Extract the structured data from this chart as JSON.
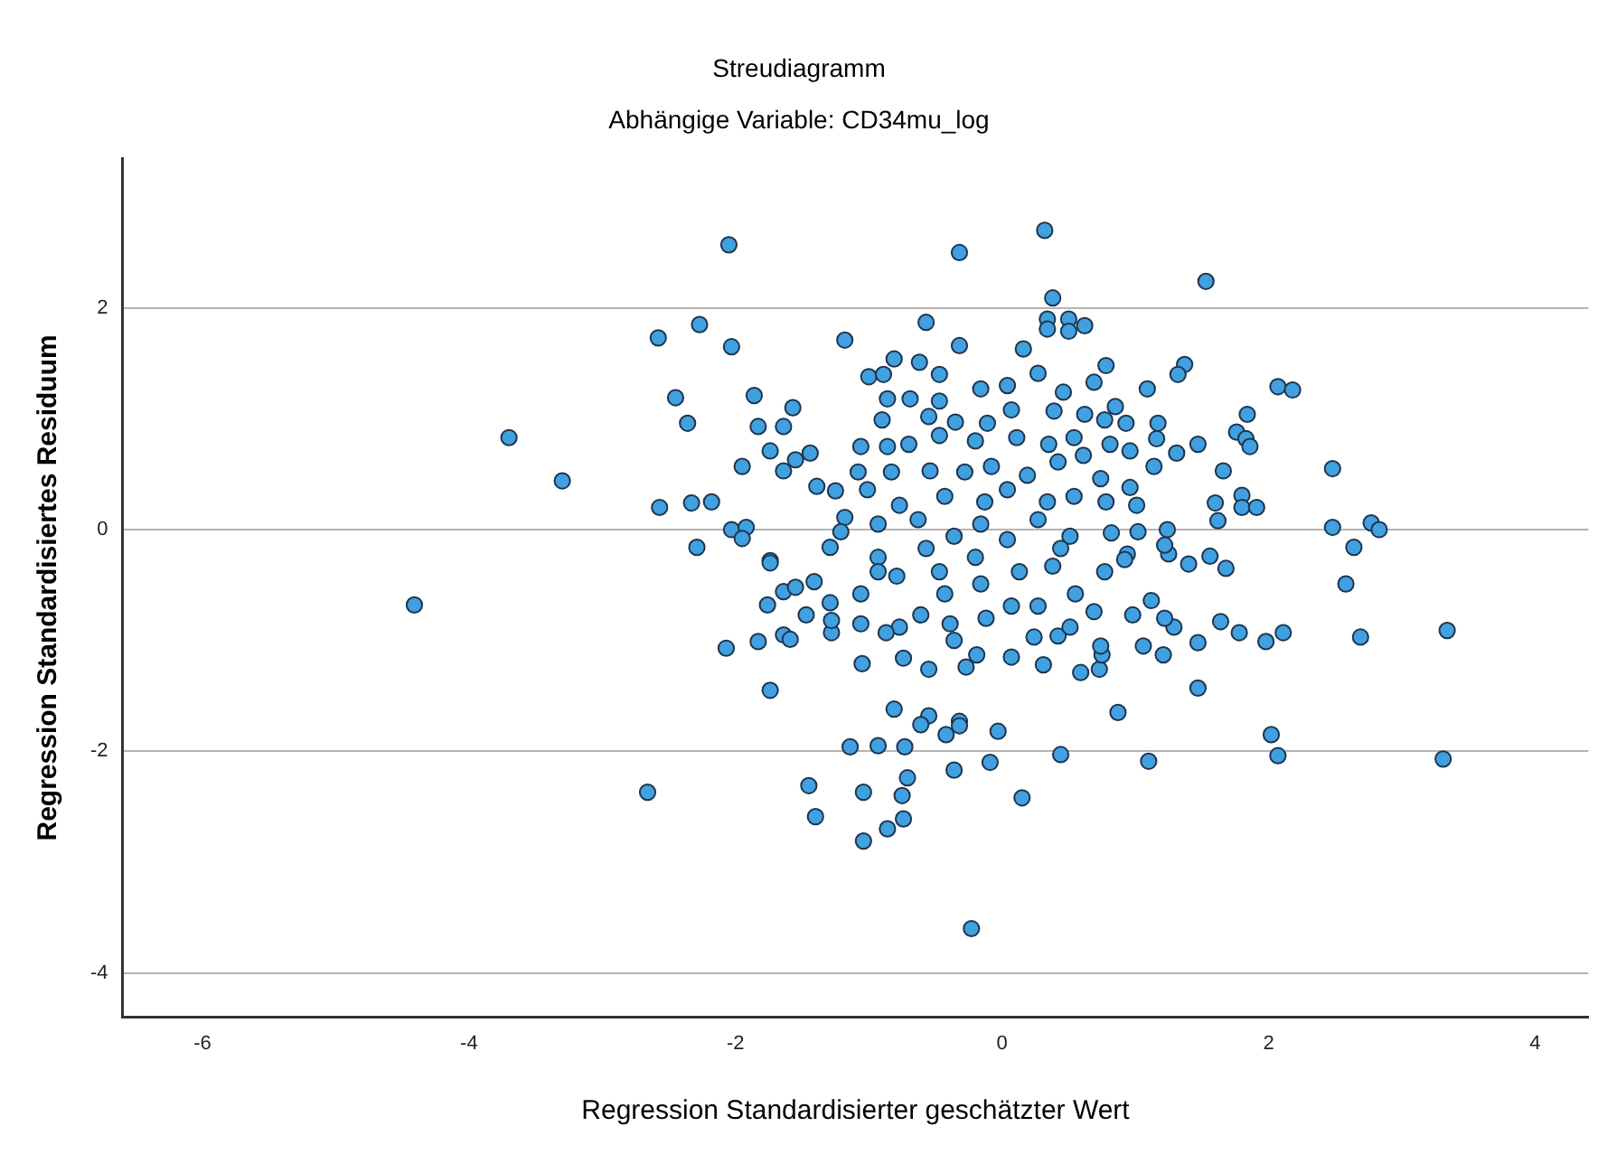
{
  "chart_data": {
    "type": "scatter",
    "title": "Streudiagramm",
    "subtitle": "Abhängige Variable: CD34mu_log",
    "xlabel": "Regression Standardisierter geschätzter Wert",
    "ylabel": "Regression Standardisiertes Residuum",
    "xlim": [
      -6.6,
      4.4
    ],
    "ylim": [
      -4.4,
      3.35
    ],
    "xticks": [
      -6,
      -4,
      -2,
      0,
      2,
      4
    ],
    "yticks": [
      -4,
      -2,
      0,
      2
    ],
    "grid": "y",
    "marker": "circle",
    "legend": false,
    "series": [
      {
        "color": "#41a0e0",
        "x": [
          -2.05,
          -2.58,
          -2.27,
          -2.03,
          -1.18,
          -2.45,
          -2.36,
          -3.7,
          -3.3,
          -2.57,
          -2.33,
          -2.18,
          -1.86,
          -1.57,
          -1.83,
          -1.64,
          -1.95,
          -1.74,
          -1.55,
          -1.44,
          -1.64,
          -1.39,
          -1.25,
          -2.03,
          -1.92,
          -1.95,
          -2.29,
          -1.74,
          -1.29,
          -1.18,
          -4.41,
          -2.66,
          -1.45,
          -1.4,
          -1.04,
          -1.14,
          -1.04,
          -1.74,
          -2.07,
          -1.83,
          -1.64,
          -1.59,
          -1.76,
          -1.64,
          -1.55,
          -1.47,
          -1.41,
          -1.29,
          -1.28,
          -1.74,
          -1.06,
          -1.05,
          0.32,
          -0.32,
          1.53,
          0.38,
          -0.57,
          0.34,
          0.5,
          0.5,
          0.62,
          0.34,
          -0.32,
          -0.81,
          -1.0,
          -0.89,
          -0.62,
          -0.47,
          0.16,
          0.78,
          1.09,
          1.37,
          1.32,
          2.07,
          2.18,
          1.84,
          1.76,
          1.83,
          1.86,
          2.48,
          1.66,
          1.6,
          1.62,
          1.8,
          1.8,
          1.91,
          2.48,
          2.77,
          2.83,
          2.64,
          2.58,
          1.56,
          1.68,
          1.4,
          1.31,
          1.47,
          1.17,
          1.16,
          0.93,
          0.96,
          1.14,
          0.96,
          1.24,
          1.25,
          0.77,
          3.34,
          3.31,
          2.69,
          2.11,
          1.98,
          1.78,
          1.64,
          1.47,
          1.47,
          2.02,
          2.07,
          1.1,
          0.87,
          0.44,
          0.15,
          -0.23,
          -0.03,
          -0.09,
          -0.36,
          -0.42,
          -0.32,
          -0.32,
          -0.55,
          -0.61,
          -0.81,
          -0.73,
          -0.93,
          -0.71,
          -0.75,
          -0.74,
          -0.86,
          0.59,
          0.73,
          0.75,
          1.21,
          1.06,
          1.29,
          -0.27,
          -0.55,
          -0.74,
          0.07,
          0.31,
          -0.86,
          -0.69,
          -0.47,
          -0.16,
          0.04,
          0.27,
          0.46,
          0.69,
          0.85,
          -0.9,
          -0.55,
          -0.35,
          -0.11,
          0.07,
          0.39,
          0.62,
          0.77,
          -1.06,
          -0.86,
          -0.7,
          -0.47,
          -0.2,
          0.11,
          0.35,
          0.54,
          0.81,
          -1.08,
          -0.83,
          -0.54,
          -0.28,
          -0.08,
          0.19,
          0.42,
          0.61,
          0.74,
          -1.01,
          -0.77,
          -0.43,
          -0.13,
          0.04,
          0.34,
          0.54,
          0.78,
          1.01,
          -1.21,
          -0.93,
          -0.63,
          -0.36,
          -0.16,
          0.04,
          0.27,
          0.51,
          0.82,
          1.02,
          -0.93,
          -0.57,
          -0.2,
          0.13,
          0.44,
          0.94,
          -1.28,
          -0.93,
          -0.79,
          -0.77,
          -0.61,
          -0.47,
          -0.39,
          -0.36,
          -0.19,
          -0.12,
          -0.16,
          0.07,
          0.24,
          0.27,
          0.38,
          0.42,
          0.51,
          0.55,
          0.69,
          0.74,
          0.92,
          0.98,
          1.12,
          1.22,
          1.22,
          -0.43,
          -1.06,
          -0.87
        ],
        "values": [
          2.57,
          1.73,
          1.85,
          1.65,
          1.71,
          1.19,
          0.96,
          0.83,
          0.44,
          0.2,
          0.24,
          0.25,
          1.21,
          1.1,
          0.93,
          0.93,
          0.57,
          0.71,
          0.63,
          0.69,
          0.53,
          0.39,
          0.35,
          0.0,
          0.02,
          -0.08,
          -0.16,
          -0.28,
          -0.16,
          0.11,
          -0.68,
          -2.37,
          -2.31,
          -2.59,
          -2.81,
          -1.96,
          -2.37,
          -1.45,
          -1.07,
          -1.01,
          -0.95,
          -0.99,
          -0.68,
          -0.56,
          -0.52,
          -0.77,
          -0.47,
          -0.66,
          -0.93,
          -0.3,
          -0.85,
          -1.21,
          2.7,
          2.5,
          2.24,
          2.09,
          1.87,
          1.9,
          1.9,
          1.79,
          1.84,
          1.81,
          1.66,
          1.54,
          1.38,
          1.4,
          1.51,
          1.4,
          1.63,
          1.48,
          1.27,
          1.49,
          1.4,
          1.29,
          1.26,
          1.04,
          0.88,
          0.82,
          0.75,
          0.55,
          0.53,
          0.24,
          0.08,
          0.31,
          0.2,
          0.2,
          0.02,
          0.06,
          0.0,
          -0.16,
          -0.49,
          -0.24,
          -0.35,
          -0.31,
          0.69,
          0.77,
          0.96,
          0.82,
          0.96,
          0.71,
          0.57,
          0.38,
          0.0,
          -0.22,
          -0.38,
          -0.91,
          -2.07,
          -0.97,
          -0.93,
          -1.01,
          -0.93,
          -0.83,
          -1.02,
          -1.43,
          -1.85,
          -2.04,
          -2.09,
          -1.65,
          -2.03,
          -2.42,
          -3.6,
          -1.82,
          -2.1,
          -2.17,
          -1.85,
          -1.73,
          -1.77,
          -1.68,
          -1.76,
          -1.62,
          -1.96,
          -1.95,
          -2.24,
          -2.4,
          -2.61,
          -2.7,
          -1.29,
          -1.26,
          -1.13,
          -1.13,
          -1.05,
          -0.88,
          -1.24,
          -1.26,
          -1.16,
          -1.15,
          -1.22,
          1.18,
          1.18,
          1.16,
          1.27,
          1.3,
          1.41,
          1.24,
          1.33,
          1.11,
          0.99,
          1.02,
          0.97,
          0.96,
          1.08,
          1.07,
          1.04,
          0.99,
          0.75,
          0.75,
          0.77,
          0.85,
          0.8,
          0.83,
          0.77,
          0.83,
          0.77,
          0.52,
          0.52,
          0.53,
          0.52,
          0.57,
          0.49,
          0.61,
          0.67,
          0.46,
          0.36,
          0.22,
          0.3,
          0.25,
          0.36,
          0.25,
          0.3,
          0.25,
          0.22,
          -0.02,
          0.05,
          0.09,
          -0.06,
          0.05,
          -0.09,
          0.09,
          -0.06,
          -0.03,
          -0.02,
          -0.25,
          -0.17,
          -0.25,
          -0.38,
          -0.17,
          -0.22,
          -0.82,
          -0.38,
          -0.42,
          -0.88,
          -0.77,
          -0.38,
          -0.85,
          -1.0,
          -1.13,
          -0.8,
          -0.49,
          -0.69,
          -0.97,
          -0.69,
          -0.33,
          -0.96,
          -0.88,
          -0.58,
          -0.74,
          -1.05,
          -0.27,
          -0.77,
          -0.64,
          -0.8,
          -0.14,
          -0.58,
          -0.58,
          -0.93
        ]
      }
    ]
  }
}
